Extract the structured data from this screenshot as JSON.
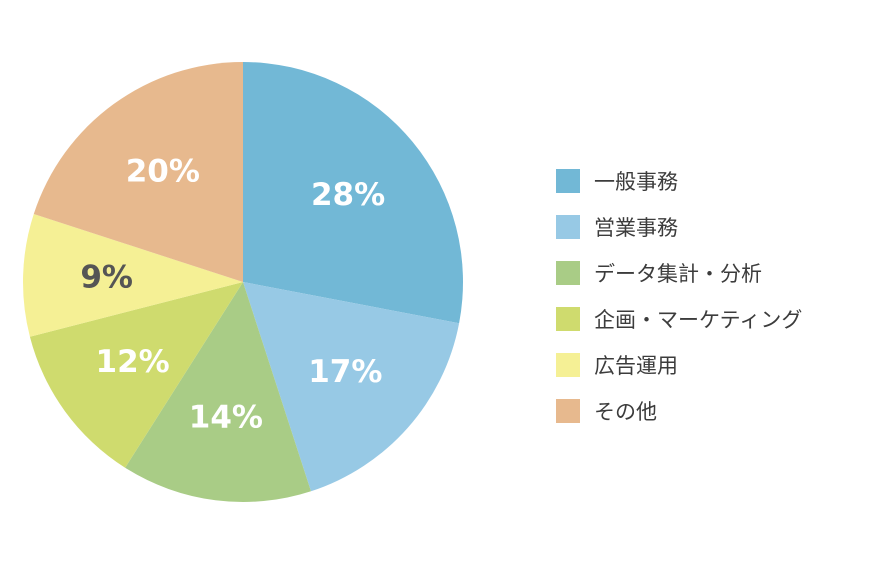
{
  "chart_data": {
    "type": "pie",
    "title": "",
    "categories": [
      "一般事務",
      "営業事務",
      "データ集計・分析",
      "企画・マーケティング",
      "広告運用",
      "その他"
    ],
    "values": [
      28,
      17,
      14,
      12,
      9,
      20
    ],
    "value_labels": [
      "28%",
      "17%",
      "14%",
      "12%",
      "9%",
      "20%"
    ],
    "unit": "%",
    "start_angle": "12 o'clock",
    "direction": "clockwise",
    "colors": [
      "#72b8d6",
      "#97c9e5",
      "#a9cc86",
      "#cfdb6e",
      "#f5f095",
      "#e7b98e"
    ],
    "label_colors": [
      "#ffffff",
      "#ffffff",
      "#ffffff",
      "#ffffff",
      "#555555",
      "#ffffff"
    ],
    "legend_position": "right"
  }
}
